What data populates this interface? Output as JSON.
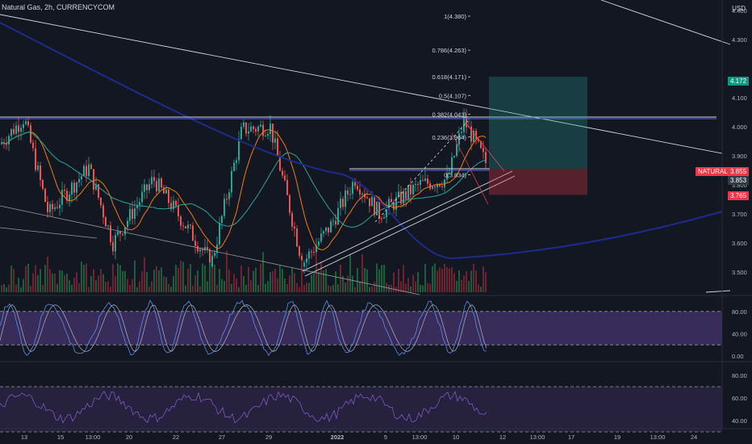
{
  "header": {
    "title": "Natural Gas, 2h, CURRENCYCOM",
    "currency": "USD"
  },
  "price_axis": {
    "ticks": [
      "4.400",
      "4.300",
      "4.100",
      "4.000",
      "3.900",
      "3.800",
      "3.700",
      "3.600",
      "3.500"
    ],
    "tick_values": [
      4.4,
      4.3,
      4.1,
      4.0,
      3.9,
      3.8,
      3.7,
      3.6,
      3.5
    ],
    "price_min": 3.43,
    "price_max": 4.43
  },
  "badges": {
    "target": {
      "label": "4.172",
      "color": "#089981"
    },
    "symbol": {
      "label": "NATURALGAS",
      "color": "#f23645"
    },
    "last": {
      "label": "3.855",
      "color": "#f23645"
    },
    "mid": {
      "label": "3.853",
      "color": "#363a45"
    },
    "stop": {
      "label": "3.765",
      "color": "#f23645"
    }
  },
  "fib_levels": [
    {
      "label": "1(4.380)",
      "value": 4.38
    },
    {
      "label": "0.786(4.263)",
      "value": 4.263
    },
    {
      "label": "0.618(4.171)",
      "value": 4.171
    },
    {
      "label": "0.5(4.107)",
      "value": 4.107
    },
    {
      "label": "0.382(4.043)",
      "value": 4.043
    },
    {
      "label": "0.236(3.964)",
      "value": 3.964
    },
    {
      "label": "0(3.834)",
      "value": 3.834
    }
  ],
  "time_axis": {
    "labels": [
      "13",
      "15",
      "13:00",
      "20",
      "22",
      "27",
      "29",
      "2022",
      "5",
      "13:00",
      "10",
      "12",
      "13:00",
      "17",
      "19",
      "13:00",
      "24"
    ]
  },
  "stoch_rsi": {
    "ticks": [
      "80.00",
      "40.00",
      "0.00"
    ],
    "values": [
      80,
      40,
      0
    ],
    "band": [
      20,
      80
    ]
  },
  "rsi": {
    "ticks": [
      "80.00",
      "60.00",
      "40.00"
    ],
    "values": [
      80,
      60,
      40
    ],
    "band": [
      30,
      70
    ]
  },
  "colors": {
    "background": "#131722",
    "up": "#26a69a",
    "down": "#ef5350",
    "ema_long": "#1e2a8c",
    "ema_mid": "#26a69a",
    "ema_short": "#f57c00",
    "band_fill": "#7e57c2",
    "target_zone": "#26a69a",
    "stop_zone": "#f23645"
  }
}
